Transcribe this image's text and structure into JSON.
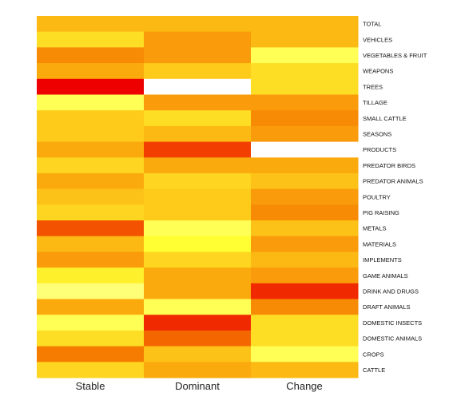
{
  "chart_data": {
    "type": "heatmap",
    "x_categories": [
      "Stable",
      "Dominant",
      "Change"
    ],
    "y_categories": [
      "TOTAL",
      "VEHICLES",
      "VEGETABLES & FRUIT",
      "WEAPONS",
      "TREES",
      "TILLAGE",
      "SMALL CATTLE",
      "SEASONS",
      "PRODUCTS",
      "PREDATOR BIRDS",
      "PREDATOR ANIMALS",
      "POULTRY",
      "PIG RAISING",
      "METALS",
      "MATERIALS",
      "IMPLEMENTS",
      "GAME ANIMALS",
      "DRINK AND DRUGS",
      "DRAFT ANIMALS",
      "DOMESTIC INSECTS",
      "DOMESTIC ANIMALS",
      "CROPS",
      "CATTLE"
    ],
    "values": [
      [
        0.5,
        0.5,
        0.5
      ],
      [
        0.3,
        0.6,
        0.5
      ],
      [
        0.65,
        0.6,
        0.1
      ],
      [
        0.55,
        0.4,
        0.3
      ],
      [
        1.0,
        0.0,
        0.3
      ],
      [
        0.1,
        0.6,
        0.6
      ],
      [
        0.4,
        0.3,
        0.65
      ],
      [
        0.4,
        0.5,
        0.6
      ],
      [
        0.55,
        0.85,
        0.0
      ],
      [
        0.35,
        0.55,
        0.55
      ],
      [
        0.55,
        0.35,
        0.45
      ],
      [
        0.45,
        0.4,
        0.6
      ],
      [
        0.35,
        0.4,
        0.65
      ],
      [
        0.8,
        0.1,
        0.45
      ],
      [
        0.5,
        0.12,
        0.6
      ],
      [
        0.6,
        0.35,
        0.5
      ],
      [
        0.2,
        0.55,
        0.6
      ],
      [
        0.08,
        0.55,
        0.9
      ],
      [
        0.55,
        0.1,
        0.65
      ],
      [
        0.1,
        0.9,
        0.3
      ],
      [
        0.3,
        0.75,
        0.3
      ],
      [
        0.7,
        0.45,
        0.1
      ],
      [
        0.35,
        0.55,
        0.5
      ]
    ],
    "color_scale": {
      "low": "#ffffff",
      "mid_low": "#ffff33",
      "mid": "#fdb913",
      "mid_high": "#f57c00",
      "high": "#ee0000"
    },
    "title": "",
    "legend": "none"
  }
}
